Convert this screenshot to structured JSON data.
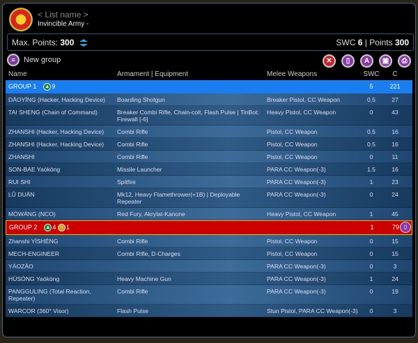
{
  "header": {
    "list_name": "< List name >",
    "army": "Invincible Army -"
  },
  "points": {
    "max_label": "Max. Points:",
    "max_value": "300",
    "swc_label": "SWC",
    "swc_value": "6",
    "sep": "|",
    "points_label": "Points",
    "points_value": "300"
  },
  "toolbar": {
    "new_group": "New group",
    "tools": [
      {
        "icon": "close-icon",
        "glyph": "✕",
        "color": "#c4262e"
      },
      {
        "icon": "trash-icon",
        "glyph": "▯",
        "color": "#8a3aa8"
      },
      {
        "icon": "army-icon",
        "glyph": "A",
        "color": "#8a3aa8"
      },
      {
        "icon": "save-icon",
        "glyph": "▣",
        "color": "#8a3aa8"
      },
      {
        "icon": "print-icon",
        "glyph": "⎙",
        "color": "#8a3aa8"
      }
    ]
  },
  "columns": [
    "Name",
    "Armament | Equipment",
    "Melee Weapons",
    "SWC",
    "C"
  ],
  "groups": [
    {
      "label": "GROUP 1",
      "orders": [
        {
          "type": "regular",
          "count": "9",
          "color": "#1a8a3a"
        }
      ],
      "swc": "5",
      "c": "221",
      "color": "blue",
      "rows": [
        [
          "DĀOYĪNG (Hacker, Hacking Device)",
          "Boarding Shotgun",
          "Breaker Pistol, CC Weapon",
          "0.5",
          "27"
        ],
        [
          "TAI SHENG (Chain of Command)",
          "Breaker Combi Rifle, Chain-colt, Flash Pulse | TinBot: Firewall [-6]",
          "Heavy Pistol, CC Weapon",
          "0",
          "43"
        ],
        [
          "ZHANSHI (Hacker, Hacking Device)",
          "Combi Rifle",
          "Pistol, CC Weapon",
          "0.5",
          "16"
        ],
        [
          "ZHANSHI (Hacker, Hacking Device)",
          "Combi Rifle",
          "Pistol, CC Weapon",
          "0.5",
          "16"
        ],
        [
          "ZHANSHI",
          "Combi Rifle",
          "Pistol, CC Weapon",
          "0",
          "11"
        ],
        [
          "SON-BAE Yaókòng",
          "Missile Launcher",
          "PARA CC Weapon(-3)",
          "1.5",
          "16"
        ],
        [
          "RUI SHI",
          "Spitfire",
          "PARA CC Weapon(-3)",
          "1",
          "23"
        ],
        [
          "LǓ DUĀN",
          "Mk12, Heavy Flamethrower(+1B) | Deployable Repeater",
          "PARA CC Weapon(-3)",
          "0",
          "24"
        ],
        [
          "MÓWÁNG (NCO)",
          "Red Fury, Akrylat-Kanone",
          "Heavy Pistol, CC Weapon",
          "1",
          "45"
        ]
      ]
    },
    {
      "label": "GROUP 2",
      "orders": [
        {
          "type": "regular",
          "count": "4",
          "color": "#1a8a3a"
        },
        {
          "type": "irregular",
          "count": "1",
          "color": "#d4a020"
        }
      ],
      "swc": "1",
      "c": "79",
      "color": "red",
      "rows": [
        [
          "Zhanshi YÌSHĒNG",
          "Combi Rifle",
          "Pistol, CC Weapon",
          "0",
          "15"
        ],
        [
          "MECH-ENGINEER",
          "Combi Rifle, D-Charges",
          "Pistol, CC Weapon",
          "0",
          "15"
        ],
        [
          "YÁOZĂO",
          "",
          "PARA CC Weapon(-3)",
          "0",
          "3"
        ],
        [
          "HÙSÒNG Yaókòng",
          "Heavy Machine Gun",
          "PARA CC Weapon(-3)",
          "1",
          "24"
        ],
        [
          "PANGGULING (Total Reaction, Repeater)",
          "Combi Rifle",
          "PARA CC Weapon(-3)",
          "0",
          "19"
        ],
        [
          "WARCOR (360° Visor)",
          "Flash Pulse",
          "Stun Pistol, PARA CC Weapon(-3)",
          "0",
          "3"
        ]
      ]
    }
  ]
}
